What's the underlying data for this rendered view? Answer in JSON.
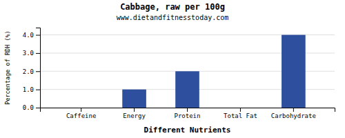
{
  "chart_data": {
    "type": "bar",
    "title": "Cabbage, raw per 100g",
    "subtitle": "www.dietandfitnesstoday.com",
    "xlabel": "Different Nutrients",
    "ylabel": "Percentage of RDH (%)",
    "categories": [
      "Caffeine",
      "Energy",
      "Protein",
      "Total Fat",
      "Carbohydrate"
    ],
    "values": [
      0.0,
      1.0,
      2.0,
      0.0,
      4.0
    ],
    "color": "#2e4f9e",
    "ylim": [
      0.0,
      4.4
    ],
    "yticks": [
      {
        "value": 0.0,
        "label": "0.0"
      },
      {
        "value": 1.0,
        "label": "1.0"
      },
      {
        "value": 2.0,
        "label": "2.0"
      },
      {
        "value": 3.0,
        "label": "3.0"
      },
      {
        "value": 4.0,
        "label": "4.0"
      }
    ],
    "grid": true
  }
}
